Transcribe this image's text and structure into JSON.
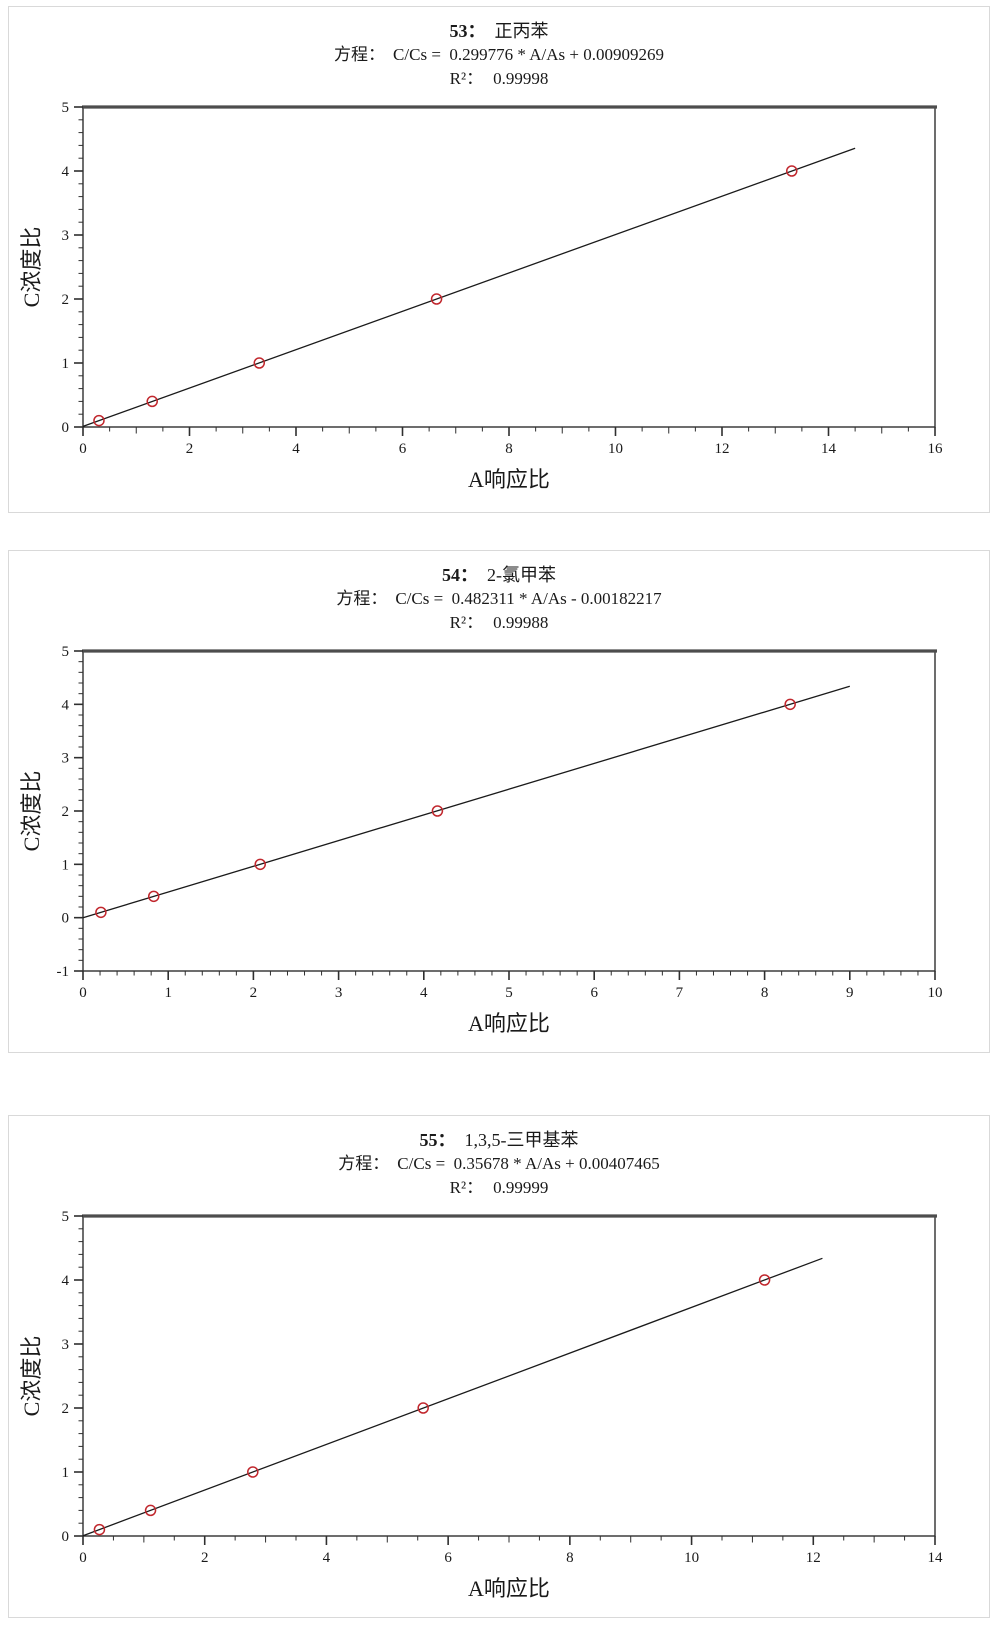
{
  "page": {
    "background": "#ffffff",
    "panel_border_color": "#d9d9d9",
    "axis_color": "#2f2f2f",
    "text_color": "#1a1a1a"
  },
  "chart_data": [
    {
      "type": "scatter",
      "index_label": "53：",
      "compound": "正丙苯",
      "equation_prefix": "方程：",
      "equation": "C/Cs =  0.299776 * A/As + 0.00909269",
      "r2_prefix": "R²：",
      "r2": "0.99998",
      "xlabel": "A响应比",
      "ylabel": "C浓度比",
      "x_min": 0,
      "x_max": 16,
      "x_major_step": 2,
      "x_medium_step": 1,
      "x_minor_step": 0.5,
      "y_min": 0,
      "y_max": 5,
      "y_major_step": 1,
      "y_minor_step": 0.2,
      "points": [
        [
          0.3,
          0.1
        ],
        [
          1.3,
          0.4
        ],
        [
          3.31,
          1.0
        ],
        [
          6.64,
          2.0
        ],
        [
          13.31,
          4.0
        ]
      ],
      "fit_line": {
        "slope": 0.299776,
        "intercept": 0.00909269,
        "x_start": 0,
        "x_end": 14.5
      },
      "marker_color": "#c1272d",
      "line_color": "#1a1a1a"
    },
    {
      "type": "scatter",
      "index_label": "54：",
      "compound": "2-氯甲苯",
      "equation_prefix": "方程：",
      "equation": "C/Cs =  0.482311 * A/As - 0.00182217",
      "r2_prefix": "R²：",
      "r2": "0.99988",
      "xlabel": "A响应比",
      "ylabel": "C浓度比",
      "x_min": 0,
      "x_max": 10,
      "x_major_step": 1,
      "x_medium_step": null,
      "x_minor_step": 0.2,
      "y_min": -1,
      "y_max": 5,
      "y_major_step": 1,
      "y_minor_step": 0.2,
      "points": [
        [
          0.21,
          0.1
        ],
        [
          0.83,
          0.4
        ],
        [
          2.08,
          1.0
        ],
        [
          4.16,
          2.0
        ],
        [
          8.3,
          4.0
        ]
      ],
      "fit_line": {
        "slope": 0.482311,
        "intercept": -0.00182217,
        "x_start": 0,
        "x_end": 9.0
      },
      "marker_color": "#c1272d",
      "line_color": "#1a1a1a"
    },
    {
      "type": "scatter",
      "index_label": "55：",
      "compound": "1,3,5-三甲基苯",
      "equation_prefix": "方程：",
      "equation": "C/Cs =  0.35678 * A/As + 0.00407465",
      "r2_prefix": "R²：",
      "r2": "0.99999",
      "xlabel": "A响应比",
      "ylabel": "C浓度比",
      "x_min": 0,
      "x_max": 14,
      "x_major_step": 2,
      "x_medium_step": 1,
      "x_minor_step": 0.5,
      "y_min": 0,
      "y_max": 5,
      "y_major_step": 1,
      "y_minor_step": 0.2,
      "points": [
        [
          0.27,
          0.1
        ],
        [
          1.11,
          0.4
        ],
        [
          2.79,
          1.0
        ],
        [
          5.59,
          2.0
        ],
        [
          11.2,
          4.0
        ]
      ],
      "fit_line": {
        "slope": 0.35678,
        "intercept": 0.00407465,
        "x_start": 0,
        "x_end": 12.15
      },
      "marker_color": "#c1272d",
      "line_color": "#1a1a1a"
    }
  ]
}
